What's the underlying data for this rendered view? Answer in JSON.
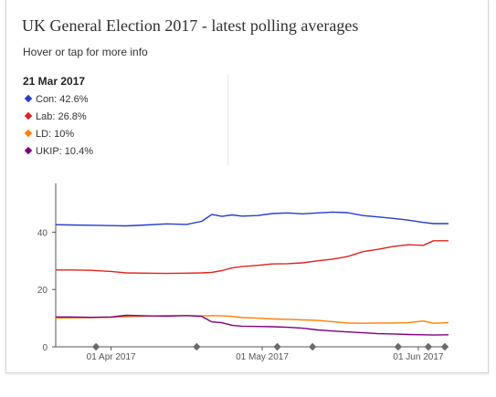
{
  "header": {
    "title": "UK General Election 2017 - latest polling averages",
    "subtitle": "Hover or tap for more info"
  },
  "tooltip": {
    "date": "21 Mar 2017",
    "rows": [
      {
        "label": "Con: 42.6%",
        "color": "#1f3fd1"
      },
      {
        "label": "Lab: 26.8%",
        "color": "#e0231b"
      },
      {
        "label": "LD: 10%",
        "color": "#ff7f00"
      },
      {
        "label": "UKIP: 10.4%",
        "color": "#800080"
      }
    ]
  },
  "chart_data": {
    "type": "line",
    "title": "UK General Election 2017 - latest polling averages",
    "xlabel": "",
    "ylabel": "",
    "xlim": [
      "2017-03-21",
      "2017-06-07"
    ],
    "ylim": [
      0,
      57
    ],
    "yticks": [
      0,
      20,
      40
    ],
    "xticks": [
      {
        "date": "2017-04-01",
        "label": "01 Apr 2017"
      },
      {
        "date": "2017-05-01",
        "label": "01 May 2017"
      },
      {
        "date": "2017-06-01",
        "label": "01 Jun 2017"
      }
    ],
    "grid": false,
    "event_markers": [
      "2017-03-29",
      "2017-04-18",
      "2017-05-04",
      "2017-05-11",
      "2017-05-28",
      "2017-06-03",
      "2017-06-08"
    ],
    "x": [
      "2017-03-21",
      "2017-03-24",
      "2017-03-28",
      "2017-04-01",
      "2017-04-04",
      "2017-04-08",
      "2017-04-12",
      "2017-04-16",
      "2017-04-19",
      "2017-04-21",
      "2017-04-23",
      "2017-04-25",
      "2017-04-27",
      "2017-04-30",
      "2017-05-03",
      "2017-05-06",
      "2017-05-09",
      "2017-05-12",
      "2017-05-15",
      "2017-05-18",
      "2017-05-21",
      "2017-05-24",
      "2017-05-27",
      "2017-05-30",
      "2017-06-02",
      "2017-06-04",
      "2017-06-07"
    ],
    "series": [
      {
        "name": "Con",
        "color": "#1f3fd1",
        "values": [
          42.6,
          42.5,
          42.4,
          42.3,
          42.2,
          42.5,
          42.9,
          42.7,
          43.8,
          46.2,
          45.5,
          46.0,
          45.6,
          45.8,
          46.5,
          46.7,
          46.4,
          46.7,
          47.0,
          46.8,
          45.8,
          45.3,
          44.8,
          44.2,
          43.4,
          43.0,
          43.0
        ]
      },
      {
        "name": "Lab",
        "color": "#e0231b",
        "values": [
          26.8,
          26.8,
          26.7,
          26.3,
          25.8,
          25.7,
          25.6,
          25.7,
          25.8,
          26.0,
          26.6,
          27.5,
          28.0,
          28.4,
          28.9,
          29.0,
          29.3,
          30.0,
          30.6,
          31.5,
          33.2,
          34.0,
          35.0,
          35.6,
          35.4,
          37.0,
          37.0
        ]
      },
      {
        "name": "LD",
        "color": "#ff7f00",
        "values": [
          10.0,
          10.1,
          10.2,
          10.3,
          10.5,
          10.7,
          10.9,
          10.9,
          10.8,
          10.9,
          10.8,
          10.6,
          10.2,
          10.0,
          9.7,
          9.6,
          9.4,
          9.2,
          8.8,
          8.3,
          8.2,
          8.3,
          8.3,
          8.4,
          9.0,
          8.2,
          8.4
        ]
      },
      {
        "name": "UKIP",
        "color": "#800080",
        "values": [
          10.4,
          10.4,
          10.3,
          10.4,
          11.0,
          10.8,
          10.7,
          10.9,
          10.6,
          8.7,
          8.4,
          7.5,
          7.2,
          7.1,
          7.0,
          6.8,
          6.5,
          5.9,
          5.5,
          5.2,
          4.9,
          4.6,
          4.5,
          4.3,
          4.2,
          4.1,
          4.2
        ]
      }
    ]
  }
}
